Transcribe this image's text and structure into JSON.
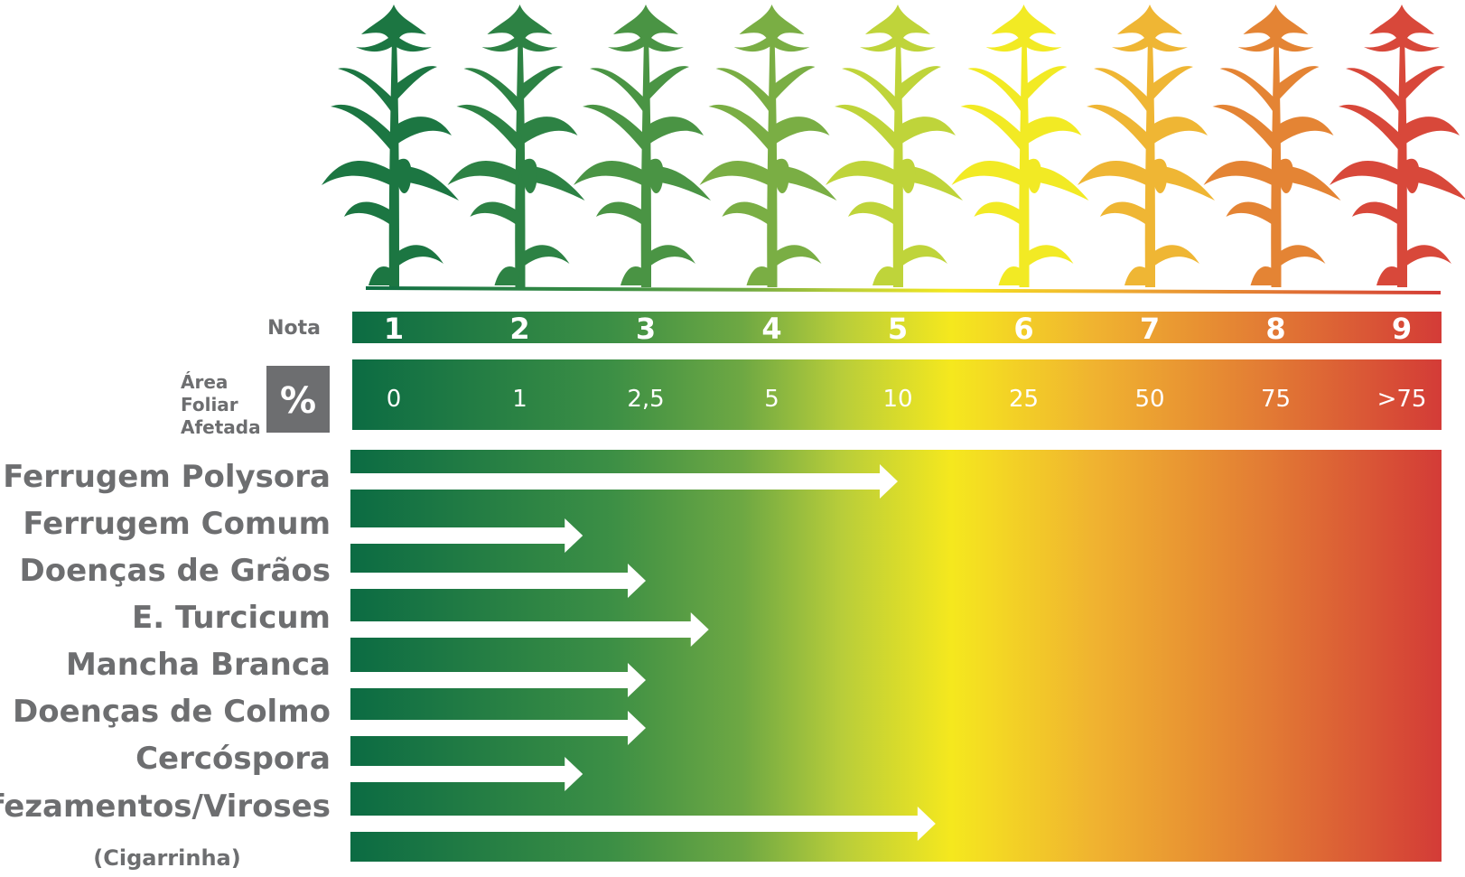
{
  "chart_data": {
    "type": "bar",
    "nota_label": "Nota",
    "area_label_lines": [
      "Área",
      "Foliar",
      "Afetada"
    ],
    "percent_symbol": "%",
    "notas": [
      "1",
      "2",
      "3",
      "4",
      "5",
      "6",
      "7",
      "8",
      "9"
    ],
    "area_values": [
      "0",
      "1",
      "2,5",
      "5",
      "10",
      "25",
      "50",
      "75",
      ">75"
    ],
    "categories": [
      "Ferrugem Polysora",
      "Ferrugem Comum",
      "Doenças de Grãos",
      "E. Turcicum",
      "Mancha Branca",
      "Doenças de Colmo",
      "Cercóspora",
      "Enfezamentos/Viroses"
    ],
    "category_note": "(Cigarrinha)",
    "values": [
      5,
      2.5,
      3,
      3.5,
      3,
      3,
      2.5,
      5.3
    ],
    "xlim": [
      1,
      9
    ],
    "colors": {
      "scale": [
        "#0b6b43",
        "#3c8f45",
        "#6ea843",
        "#b8cd3a",
        "#f5e81e",
        "#f0b330",
        "#e27a34",
        "#d33a37"
      ],
      "label_gray": "#6d6e70",
      "percent_box": "#6d6e70",
      "arrow": "#ffffff"
    }
  }
}
